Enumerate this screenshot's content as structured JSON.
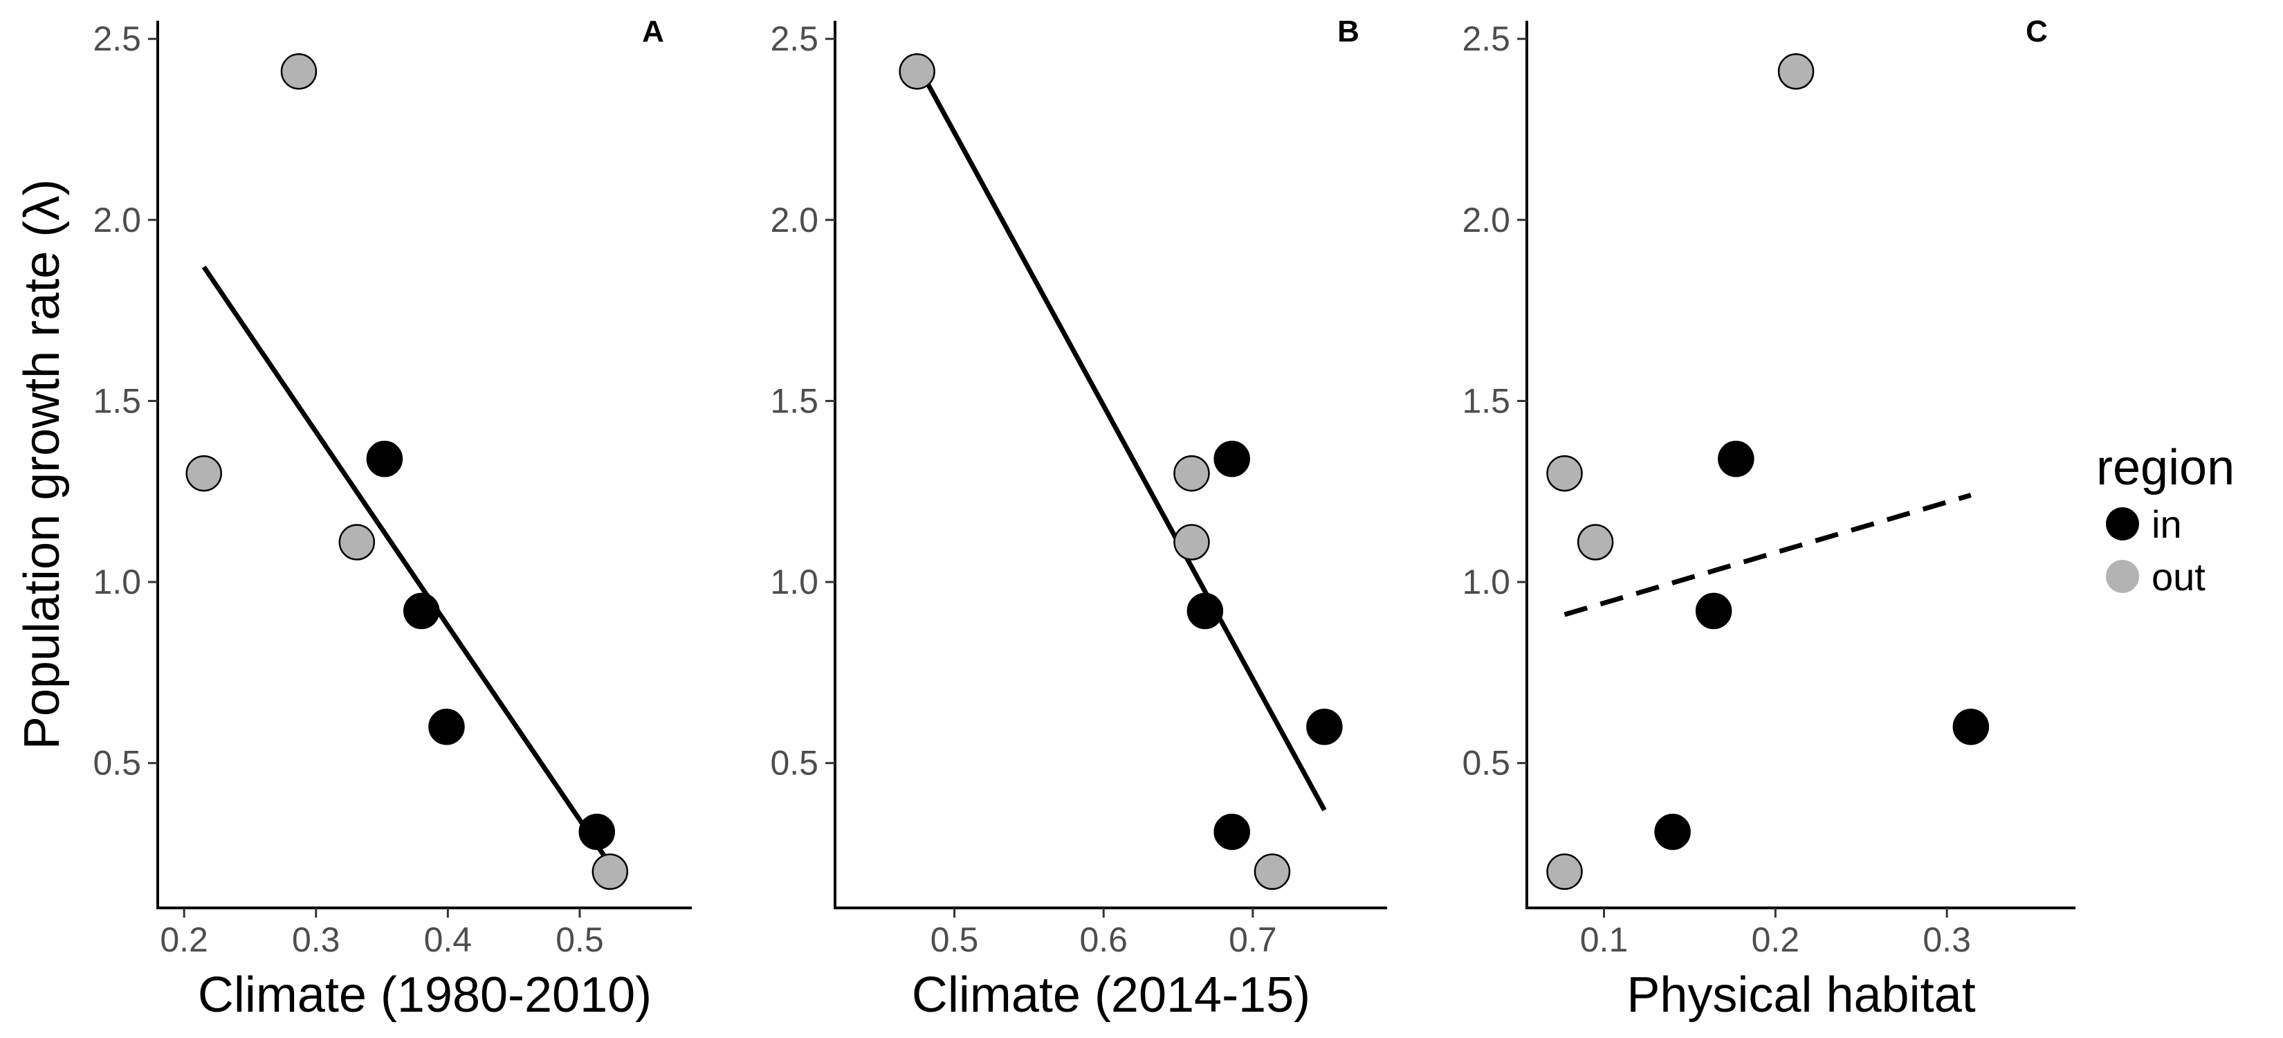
{
  "chart_data": {
    "type": "scatter",
    "ylabel": "Population growth rate (λ)",
    "ylim": [
      0.1,
      2.55
    ],
    "yticks": [
      0.5,
      1.0,
      1.5,
      2.0,
      2.5
    ],
    "ytick_labels": [
      "0.5",
      "1.0",
      "1.5",
      "2.0",
      "2.5"
    ],
    "legend": {
      "title": "region",
      "position": "right",
      "entries": [
        {
          "label": "in",
          "color": "#000000"
        },
        {
          "label": "out",
          "color": "#b3b3b3"
        }
      ]
    },
    "panels": [
      {
        "tag": "A",
        "xlabel": "Climate (1980-2010)",
        "xlim": [
          0.18,
          0.585
        ],
        "xticks": [
          0.2,
          0.3,
          0.4,
          0.5
        ],
        "xtick_labels": [
          "0.2",
          "0.3",
          "0.4",
          "0.5"
        ],
        "points": [
          {
            "x": 0.287,
            "y": 2.41,
            "region": "out"
          },
          {
            "x": 0.215,
            "y": 1.3,
            "region": "out"
          },
          {
            "x": 0.331,
            "y": 1.11,
            "region": "out"
          },
          {
            "x": 0.523,
            "y": 0.2,
            "region": "out"
          },
          {
            "x": 0.352,
            "y": 1.34,
            "region": "in"
          },
          {
            "x": 0.38,
            "y": 0.92,
            "region": "in"
          },
          {
            "x": 0.399,
            "y": 0.6,
            "region": "in"
          },
          {
            "x": 0.513,
            "y": 0.31,
            "region": "in"
          }
        ],
        "fit": {
          "x": [
            0.215,
            0.523
          ],
          "y": [
            1.87,
            0.22
          ],
          "style": "solid"
        }
      },
      {
        "tag": "B",
        "xlabel": "Climate (2014-15)",
        "xlim": [
          0.42,
          0.79
        ],
        "xticks": [
          0.5,
          0.6,
          0.7
        ],
        "xtick_labels": [
          "0.5",
          "0.6",
          "0.7"
        ],
        "points": [
          {
            "x": 0.475,
            "y": 2.41,
            "region": "out"
          },
          {
            "x": 0.659,
            "y": 1.3,
            "region": "out"
          },
          {
            "x": 0.659,
            "y": 1.11,
            "region": "out"
          },
          {
            "x": 0.713,
            "y": 0.2,
            "region": "out"
          },
          {
            "x": 0.686,
            "y": 1.34,
            "region": "in"
          },
          {
            "x": 0.668,
            "y": 0.92,
            "region": "in"
          },
          {
            "x": 0.748,
            "y": 0.6,
            "region": "in"
          },
          {
            "x": 0.686,
            "y": 0.31,
            "region": "in"
          }
        ],
        "fit": {
          "x": [
            0.475,
            0.748
          ],
          "y": [
            2.43,
            0.37
          ],
          "style": "solid"
        }
      },
      {
        "tag": "C",
        "xlabel": "Physical habitat",
        "xlim": [
          0.055,
          0.375
        ],
        "xticks": [
          0.1,
          0.2,
          0.3
        ],
        "xtick_labels": [
          "0.1",
          "0.2",
          "0.3"
        ],
        "points": [
          {
            "x": 0.212,
            "y": 2.41,
            "region": "out"
          },
          {
            "x": 0.077,
            "y": 1.3,
            "region": "out"
          },
          {
            "x": 0.095,
            "y": 1.11,
            "region": "out"
          },
          {
            "x": 0.077,
            "y": 0.2,
            "region": "out"
          },
          {
            "x": 0.177,
            "y": 1.34,
            "region": "in"
          },
          {
            "x": 0.164,
            "y": 0.92,
            "region": "in"
          },
          {
            "x": 0.314,
            "y": 0.6,
            "region": "in"
          },
          {
            "x": 0.14,
            "y": 0.31,
            "region": "in"
          }
        ],
        "fit": {
          "x": [
            0.077,
            0.314
          ],
          "y": [
            0.91,
            1.24
          ],
          "style": "dashed"
        }
      }
    ],
    "grid": false,
    "colors": {
      "in": "#000000",
      "out": "#b3b3b3",
      "outline": "#000000",
      "fit": "#000000"
    }
  }
}
